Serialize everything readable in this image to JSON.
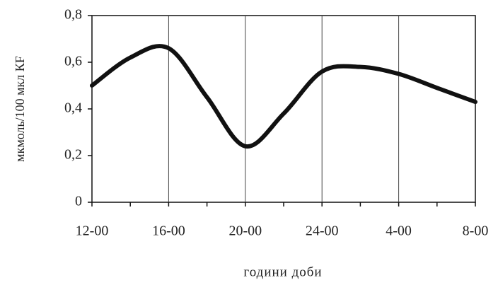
{
  "chart_data": {
    "type": "line",
    "y_label": "мкмоль/100 мкл КF",
    "x_label": "години доби",
    "categories": [
      "12-00",
      null,
      "16-00",
      null,
      "20-00",
      null,
      "24-00",
      null,
      "4-00",
      null,
      "8-00"
    ],
    "series": [
      {
        "color": "#111111",
        "values": [
          0.5,
          0.62,
          0.66,
          0.45,
          0.24,
          0.38,
          0.56,
          0.58,
          0.55,
          0.49,
          0.43
        ]
      }
    ],
    "ylim": [
      0,
      0.8
    ],
    "yticks": [
      0,
      {
        "value": 0.2,
        "label": "0,2"
      },
      {
        "value": 0.4,
        "label": "0,4"
      },
      {
        "value": 0.6,
        "label": "0,6"
      },
      {
        "value": 0.8,
        "label": "0,8"
      }
    ],
    "grid": true
  }
}
